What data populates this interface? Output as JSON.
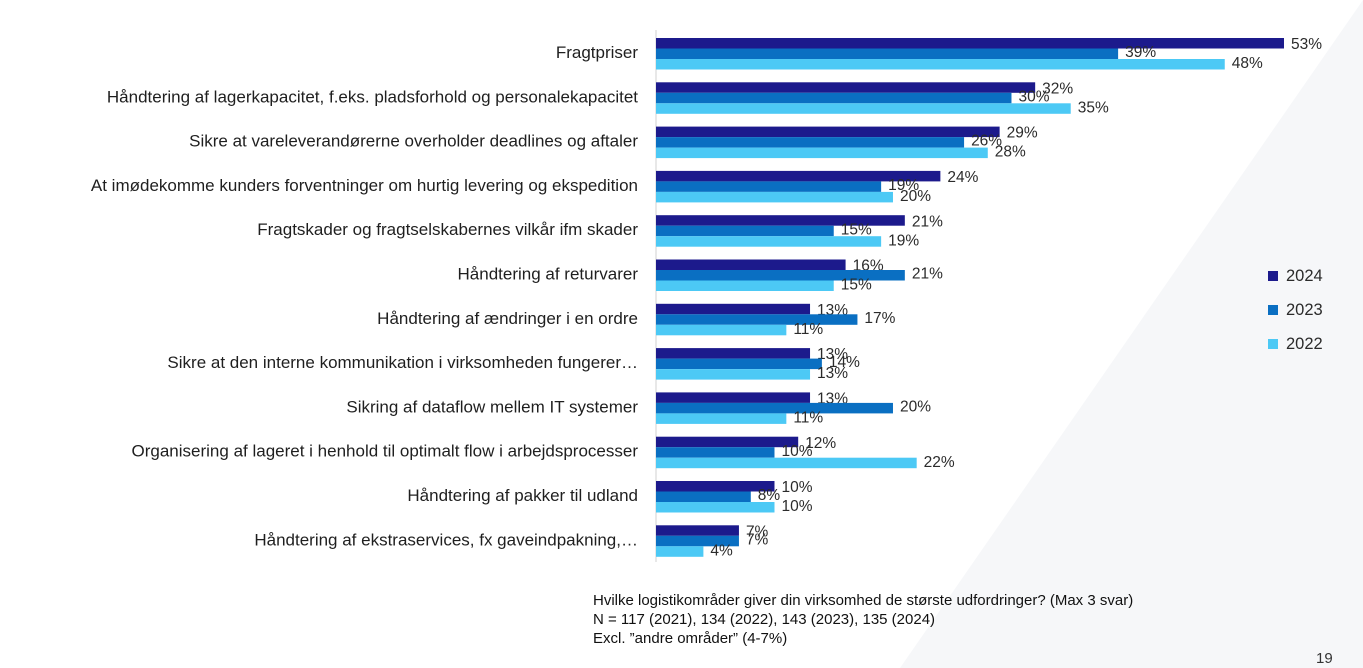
{
  "chart_data": {
    "type": "bar",
    "orientation": "horizontal",
    "categories": [
      "Fragtpriser",
      "Håndtering af lagerkapacitet, f.eks. pladsforhold og personalekapacitet",
      "Sikre at vareleverandørerne overholder deadlines og aftaler",
      "At imødekomme kunders forventninger om hurtig levering og ekspedition",
      "Fragtskader og fragtselskabernes vilkår ifm skader",
      "Håndtering af returvarer",
      "Håndtering af ændringer i en ordre",
      "Sikre at den interne kommunikation i virksomheden fungerer…",
      "Sikring af dataflow mellem IT systemer",
      "Organisering af lageret i henhold til optimalt flow i arbejdsprocesser",
      "Håndtering af pakker til udland",
      "Håndtering af ekstraservices, fx gaveindpakning,…"
    ],
    "series": [
      {
        "name": "2024",
        "color": "#1c1a8c",
        "values": [
          53,
          32,
          29,
          24,
          21,
          16,
          13,
          13,
          13,
          12,
          10,
          7
        ]
      },
      {
        "name": "2023",
        "color": "#0a6fc2",
        "values": [
          39,
          30,
          26,
          19,
          15,
          21,
          17,
          14,
          20,
          10,
          8,
          7
        ]
      },
      {
        "name": "2022",
        "color": "#4cc9f5",
        "values": [
          48,
          35,
          28,
          20,
          19,
          15,
          11,
          13,
          11,
          22,
          10,
          4
        ]
      }
    ],
    "value_suffix": "%",
    "xlim": [
      0,
      53
    ],
    "legend_position": "right",
    "grid": false
  },
  "footnote": {
    "line1": "Hvilke logistikområder giver din virksomhed de største udfordringer? (Max 3 svar)",
    "line2": "N = 117 (2021), 134 (2022), 143 (2023), 135 (2024)",
    "line3": "Excl. ”andre områder” (4-7%)"
  },
  "page_number": "19"
}
